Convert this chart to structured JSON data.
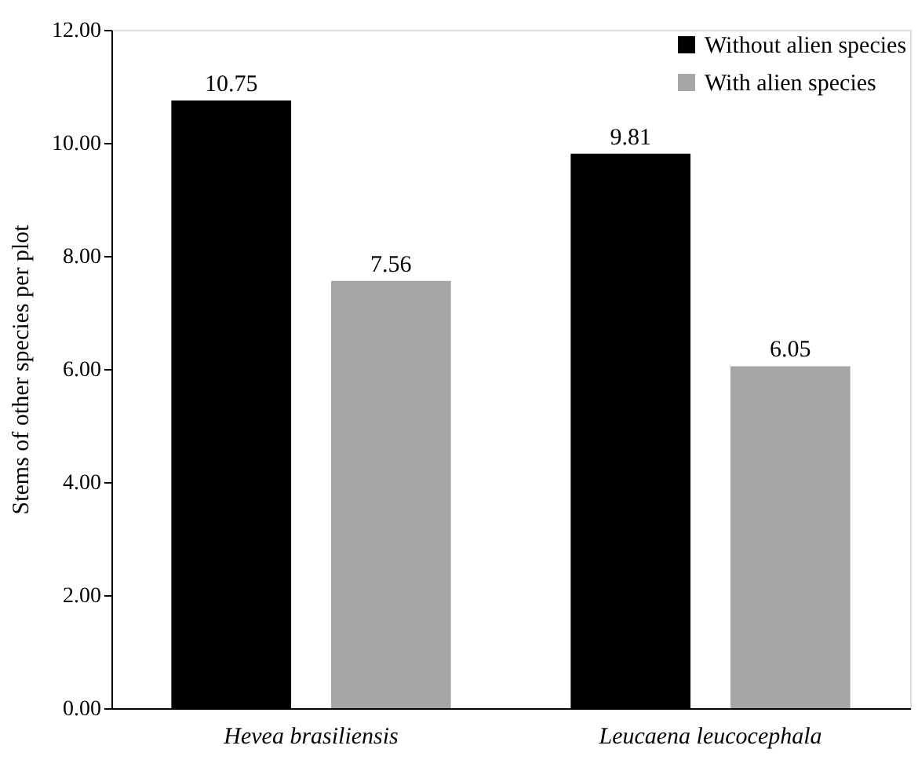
{
  "chart_data": {
    "type": "bar",
    "ylabel": "Stems of other species per plot",
    "categories": [
      "Hevea brasiliensis",
      "Leucaena leucocephala"
    ],
    "series": [
      {
        "name": "Without alien species",
        "color": "#000000",
        "values": [
          10.75,
          9.81
        ]
      },
      {
        "name": "With alien species",
        "color": "#a6a6a6",
        "values": [
          7.56,
          6.05
        ]
      }
    ],
    "ylim": [
      0,
      12
    ],
    "yticks": [
      {
        "value": 0,
        "label": "0.00"
      },
      {
        "value": 2,
        "label": "2.00"
      },
      {
        "value": 4,
        "label": "4.00"
      },
      {
        "value": 6,
        "label": "6.00"
      },
      {
        "value": 8,
        "label": "8.00"
      },
      {
        "value": 10,
        "label": "10.00"
      },
      {
        "value": 12,
        "label": "12.00"
      }
    ],
    "data_labels": true,
    "grid": false,
    "legend": "top right"
  }
}
